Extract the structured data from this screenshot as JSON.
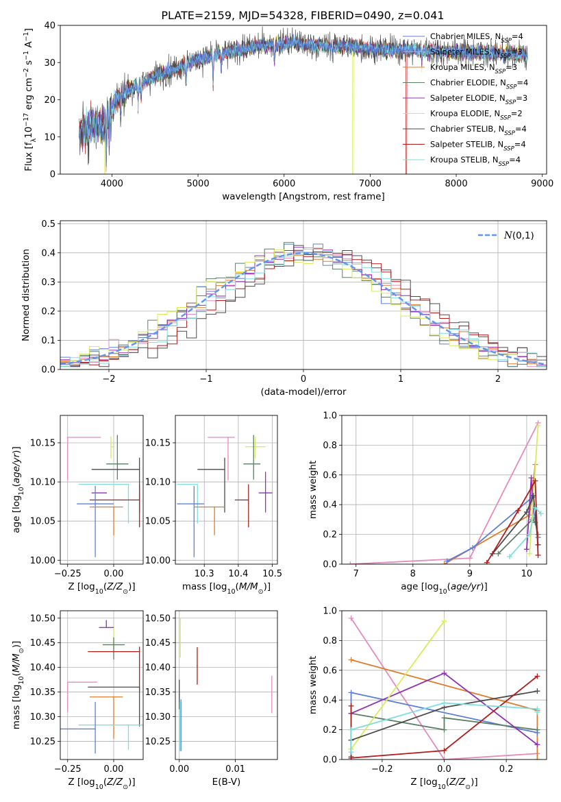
{
  "figure": {
    "title": "PLATE=2159, MJD=54328, FIBERID=0490, z=0.041"
  },
  "colors": {
    "Chabrier MILES": "#5b7fd6",
    "Salpeter MILES": "#e48bbd",
    "Kroupa MILES": "#e07b2a",
    "Chabrier ELODIE": "#5a7f63",
    "Salpeter ELODIE": "#8e2fb4",
    "Kroupa ELODIE": "#d9eb5a",
    "Chabrier STELIB": "#4a4a4a",
    "Salpeter STELIB": "#b01c1c",
    "Kroupa STELIB": "#7fdede"
  },
  "chart_data": [
    {
      "id": "spectrum",
      "type": "line",
      "title": "PLATE=2159, MJD=54328, FIBERID=0490, z=0.041",
      "xlabel": "wavelength [Angstrom, rest frame]",
      "ylabel": "Flux [f_λ 10^-17 erg cm^-2 s^-1 A^-1]",
      "xlim": [
        3400,
        9050
      ],
      "ylim": [
        0,
        40
      ],
      "xticks": [
        4000,
        5000,
        6000,
        7000,
        8000,
        9000
      ],
      "yticks": [
        0,
        10,
        20,
        30,
        40
      ],
      "grid": false,
      "legend_position": "top-right",
      "legend": [
        "Chabrier MILES, N_SSP=4",
        "Salpeter MILES, N_SSP=3",
        "Kroupa MILES, N_SSP=3",
        "Chabrier ELODIE, N_SSP=4",
        "Salpeter ELODIE, N_SSP=3",
        "Kroupa ELODIE, N_SSP=2",
        "Chabrier STELIB, N_SSP=4",
        "Salpeter STELIB, N_SSP=4",
        "Kroupa STELIB, N_SSP=4"
      ],
      "continuum": [
        [
          3620,
          11
        ],
        [
          3700,
          12
        ],
        [
          3800,
          13.5
        ],
        [
          3900,
          13
        ],
        [
          3950,
          16
        ],
        [
          4050,
          20
        ],
        [
          4150,
          22
        ],
        [
          4300,
          24
        ],
        [
          4500,
          26.5
        ],
        [
          4700,
          28
        ],
        [
          4900,
          30
        ],
        [
          5100,
          31.5
        ],
        [
          5300,
          32.5
        ],
        [
          5500,
          33.5
        ],
        [
          5700,
          34.5
        ],
        [
          5900,
          35
        ],
        [
          6100,
          35.3
        ],
        [
          6300,
          35
        ],
        [
          6500,
          34.5
        ],
        [
          6700,
          34.5
        ],
        [
          6900,
          34
        ],
        [
          7100,
          33.5
        ],
        [
          7300,
          33.5
        ],
        [
          7500,
          33.5
        ],
        [
          7700,
          33.2
        ],
        [
          7900,
          33
        ],
        [
          8100,
          33
        ],
        [
          8300,
          32.8
        ],
        [
          8500,
          32.5
        ],
        [
          8700,
          32
        ],
        [
          8830,
          32
        ]
      ],
      "absorption": [
        [
          3934,
          10
        ],
        [
          3969,
          9
        ],
        [
          4101,
          6
        ],
        [
          4305,
          5
        ],
        [
          4340,
          5
        ],
        [
          4861,
          5
        ],
        [
          5175,
          8
        ],
        [
          5270,
          4
        ],
        [
          5890,
          5
        ],
        [
          6563,
          3
        ],
        [
          7600,
          3
        ]
      ],
      "dropouts": [
        {
          "model": "Kroupa ELODIE",
          "wavelength": 6800
        },
        {
          "model": "Salpeter STELIB",
          "wavelength": 7420
        },
        {
          "model": "Kroupa ELODIE",
          "wavelength": 3920
        }
      ]
    },
    {
      "id": "residuals",
      "type": "histogram",
      "xlabel": "(data-model)/error",
      "ylabel": "Normed distribution",
      "xlim": [
        -2.5,
        2.5
      ],
      "ylim": [
        0,
        0.51
      ],
      "xticks": [
        -2,
        -1,
        0,
        1,
        2
      ],
      "yticks": [
        0.0,
        0.1,
        0.2,
        0.3,
        0.4,
        0.5
      ],
      "grid": true,
      "legend_position": "top-right",
      "reference_curve": {
        "label": "N(0,1)",
        "mean": 0,
        "sigma": 1,
        "color": "#6495ed"
      },
      "bin_width": 0.1
    },
    {
      "id": "age_vs_Z",
      "type": "errorbar",
      "xlabel": "Z [log10(Z/Z_sun)]",
      "ylabel": "age [log10(age/yr)]",
      "xlim": [
        -0.29,
        0.16
      ],
      "ylim": [
        9.995,
        10.185
      ],
      "xticks": [
        -0.25,
        0.0
      ],
      "yticks": [
        10.0,
        10.05,
        10.1,
        10.15
      ],
      "grid": true,
      "points": [
        {
          "model": "Salpeter MILES",
          "x": -0.25,
          "y": 10.157,
          "xerr": [
            0,
            0.18
          ],
          "yerr": [
            0.055,
            0
          ]
        },
        {
          "model": "Kroupa ELODIE",
          "x": -0.015,
          "y": 10.145,
          "xerr": [
            0,
            0.02
          ],
          "yerr": [
            0.015,
            0.013
          ]
        },
        {
          "model": "Chabrier ELODIE",
          "x": 0.02,
          "y": 10.123,
          "xerr": [
            0.06,
            0.06
          ],
          "yerr": [
            0.02,
            0.037
          ]
        },
        {
          "model": "Chabrier STELIB",
          "x": 0.14,
          "y": 10.116,
          "xerr": [
            0.26,
            0
          ],
          "yerr": [
            0.055,
            0.015
          ]
        },
        {
          "model": "Salpeter ELODIE",
          "x": -0.04,
          "y": 10.086,
          "xerr": [
            0.08,
            0
          ],
          "yerr": [
            0,
            0
          ]
        },
        {
          "model": "Kroupa STELIB",
          "x": 0.08,
          "y": 10.097,
          "xerr": [
            0.27,
            0
          ],
          "yerr": [
            0.05,
            0
          ]
        },
        {
          "model": "Salpeter STELIB",
          "x": 0.14,
          "y": 10.077,
          "xerr": [
            0.27,
            0
          ],
          "yerr": [
            0.035,
            0.02
          ]
        },
        {
          "model": "Chabrier MILES",
          "x": -0.1,
          "y": 10.072,
          "xerr": [
            0.1,
            0.1
          ],
          "yerr": [
            0.068,
            0.023
          ]
        },
        {
          "model": "Kroupa MILES",
          "x": 0.0,
          "y": 10.068,
          "xerr": [
            0.13,
            0.05
          ],
          "yerr": [
            0.036,
            0
          ]
        }
      ]
    },
    {
      "id": "age_vs_mass",
      "type": "errorbar",
      "xlabel": "mass [log10(M/M_sun)]",
      "ylabel": "",
      "xlim": [
        10.215,
        10.515
      ],
      "ylim": [
        9.995,
        10.185
      ],
      "xticks": [
        10.3,
        10.4,
        10.5
      ],
      "yticks": [
        10.0,
        10.05,
        10.1,
        10.15
      ],
      "grid": true,
      "points": [
        {
          "model": "Salpeter MILES",
          "x": 10.37,
          "y": 10.157,
          "xerr": [
            0.06,
            0.02
          ],
          "yerr": [
            0.055,
            0
          ]
        },
        {
          "model": "Kroupa ELODIE",
          "x": 10.45,
          "y": 10.145,
          "xerr": [
            0.03,
            0.03
          ],
          "yerr": [
            0.015,
            0.013
          ]
        },
        {
          "model": "Chabrier ELODIE",
          "x": 10.445,
          "y": 10.123,
          "xerr": [
            0.03,
            0.02
          ],
          "yerr": [
            0.02,
            0.037
          ]
        },
        {
          "model": "Chabrier STELIB",
          "x": 10.36,
          "y": 10.116,
          "xerr": [
            0.08,
            0
          ],
          "yerr": [
            0.055,
            0.015
          ]
        },
        {
          "model": "Salpeter ELODIE",
          "x": 10.48,
          "y": 10.086,
          "xerr": [
            0.02,
            0.02
          ],
          "yerr": [
            0.025,
            0.027
          ]
        },
        {
          "model": "Kroupa STELIB",
          "x": 10.28,
          "y": 10.097,
          "xerr": [
            0.06,
            0
          ],
          "yerr": [
            0.05,
            0
          ]
        },
        {
          "model": "Salpeter STELIB",
          "x": 10.43,
          "y": 10.077,
          "xerr": [
            0.04,
            0
          ],
          "yerr": [
            0.035,
            0.02
          ]
        },
        {
          "model": "Chabrier MILES",
          "x": 10.27,
          "y": 10.072,
          "xerr": [
            0.05,
            0.03
          ],
          "yerr": [
            0.068,
            0.023
          ]
        },
        {
          "model": "Kroupa MILES",
          "x": 10.33,
          "y": 10.068,
          "xerr": [
            0.06,
            0.03
          ],
          "yerr": [
            0.036,
            0
          ]
        }
      ]
    },
    {
      "id": "weight_vs_age",
      "type": "line",
      "xlabel": "age [log10(age/yr)]",
      "ylabel": "mass weight",
      "xlim": [
        6.75,
        10.35
      ],
      "ylim": [
        0,
        1.0
      ],
      "xticks": [
        7,
        8,
        9,
        10
      ],
      "yticks": [
        0.0,
        0.2,
        0.4,
        0.6,
        0.8,
        1.0
      ],
      "grid": true,
      "series": [
        {
          "model": "Salpeter MILES",
          "x": [
            6.9,
            9.0,
            10.2
          ],
          "y": [
            0.0,
            0.04,
            0.95
          ]
        },
        {
          "model": "Kroupa MILES",
          "x": [
            8.55,
            10.05,
            10.15
          ],
          "y": [
            0.0,
            0.33,
            0.67
          ]
        },
        {
          "model": "Chabrier MILES",
          "x": [
            8.6,
            9.05,
            10.1,
            10.2
          ],
          "y": [
            0.02,
            0.11,
            0.45,
            0.18
          ]
        },
        {
          "model": "Chabrier ELODIE",
          "x": [
            9.5,
            10.1,
            10.15,
            10.2
          ],
          "y": [
            0.07,
            0.3,
            0.28,
            0.2
          ]
        },
        {
          "model": "Salpeter ELODIE",
          "x": [
            10.0,
            10.08,
            10.12
          ],
          "y": [
            0.1,
            0.58,
            0.31
          ]
        },
        {
          "model": "Kroupa ELODIE",
          "x": [
            10.05,
            10.2
          ],
          "y": [
            0.07,
            0.93
          ]
        },
        {
          "model": "Chabrier STELIB",
          "x": [
            9.4,
            10.0,
            10.12,
            10.2
          ],
          "y": [
            0.07,
            0.35,
            0.46,
            0.13
          ]
        },
        {
          "model": "Salpeter STELIB",
          "x": [
            9.3,
            9.85,
            10.15,
            10.2
          ],
          "y": [
            0.01,
            0.36,
            0.56,
            0.06
          ]
        },
        {
          "model": "Kroupa STELIB",
          "x": [
            9.7,
            10.05,
            10.15,
            10.25
          ],
          "y": [
            0.05,
            0.2,
            0.38,
            0.34
          ]
        }
      ]
    },
    {
      "id": "mass_vs_Z",
      "type": "errorbar",
      "xlabel": "Z [log10(Z/Z_sun)]",
      "ylabel": "mass [log10(M/M_sun)]",
      "xlim": [
        -0.29,
        0.16
      ],
      "ylim": [
        10.213,
        10.515
      ],
      "xticks": [
        -0.25,
        0.0
      ],
      "yticks": [
        10.25,
        10.3,
        10.35,
        10.4,
        10.45,
        10.5
      ],
      "grid": true,
      "points": [
        {
          "model": "Salpeter ELODIE",
          "x": -0.04,
          "y": 10.481,
          "xerr": [
            0.04,
            0.04
          ],
          "yerr": [
            0,
            0.015
          ]
        },
        {
          "model": "Kroupa ELODIE",
          "x": 0.0,
          "y": 10.455,
          "xerr": [
            0,
            0
          ],
          "yerr": [
            0.025,
            0.025
          ]
        },
        {
          "model": "Chabrier ELODIE",
          "x": 0.0,
          "y": 10.446,
          "xerr": [
            0.06,
            0.06
          ],
          "yerr": [
            0.03,
            0.015
          ]
        },
        {
          "model": "Salpeter STELIB",
          "x": 0.14,
          "y": 10.432,
          "xerr": [
            0.28,
            0
          ],
          "yerr": [
            0.08,
            0.01
          ]
        },
        {
          "model": "Salpeter MILES",
          "x": -0.25,
          "y": 10.37,
          "xerr": [
            0,
            0.16
          ],
          "yerr": [
            0.06,
            0
          ]
        },
        {
          "model": "Chabrier STELIB",
          "x": 0.14,
          "y": 10.36,
          "xerr": [
            0.28,
            0
          ],
          "yerr": [
            0.08,
            0
          ]
        },
        {
          "model": "Kroupa MILES",
          "x": 0.0,
          "y": 10.34,
          "xerr": [
            0.13,
            0.05
          ],
          "yerr": [
            0.085,
            0
          ]
        },
        {
          "model": "Kroupa STELIB",
          "x": 0.08,
          "y": 10.283,
          "xerr": [
            0.27,
            0.08
          ],
          "yerr": [
            0.05,
            0
          ]
        },
        {
          "model": "Chabrier MILES",
          "x": -0.1,
          "y": 10.275,
          "xerr": [
            0.2,
            0
          ],
          "yerr": [
            0.05,
            0.055
          ]
        }
      ]
    },
    {
      "id": "mass_vs_EBV",
      "type": "errorbar",
      "xlabel": "E(B-V)",
      "ylabel": "",
      "xlim": [
        -0.0007,
        0.0175
      ],
      "ylim": [
        10.213,
        10.515
      ],
      "xticks": [
        0.0,
        0.01
      ],
      "yticks": [
        10.25,
        10.3,
        10.35,
        10.4,
        10.45,
        10.5
      ],
      "grid": true,
      "points": [
        {
          "model": "Kroupa ELODIE",
          "x": 0.0002,
          "y": 10.46,
          "xerr": [
            0,
            0
          ],
          "yerr": [
            0.04,
            0.04
          ]
        },
        {
          "model": "Salpeter STELIB",
          "x": 0.0032,
          "y": 10.403,
          "xerr": [
            0,
            0
          ],
          "yerr": [
            0.038,
            0.038
          ]
        },
        {
          "model": "Salpeter MILES",
          "x": 0.0165,
          "y": 10.345,
          "xerr": [
            0,
            0
          ],
          "yerr": [
            0.038,
            0.038
          ]
        },
        {
          "model": "Chabrier STELIB",
          "x": 0.0,
          "y": 10.345,
          "xerr": [
            0,
            0
          ],
          "yerr": [
            0.03,
            0.03
          ]
        },
        {
          "model": "Kroupa STELIB",
          "x": 0.0001,
          "y": 10.28,
          "xerr": [
            0,
            0
          ],
          "yerr": [
            0.05,
            0.05
          ]
        },
        {
          "model": "Chabrier MILES",
          "x": 0.0003,
          "y": 10.3,
          "xerr": [
            0,
            0
          ],
          "yerr": [
            0.07,
            0.035
          ]
        }
      ]
    },
    {
      "id": "weight_vs_Z",
      "type": "line",
      "xlabel": "Z [log10(Z/Z_sun)]",
      "ylabel": "mass weight",
      "xlim": [
        -0.33,
        0.33
      ],
      "ylim": [
        0,
        1.0
      ],
      "xticks": [
        -0.2,
        0.0,
        0.2
      ],
      "yticks": [
        0.0,
        0.2,
        0.4,
        0.6,
        0.8,
        1.0
      ],
      "grid": true,
      "series": [
        {
          "model": "Salpeter MILES",
          "x": [
            -0.3,
            0.0,
            0.3
          ],
          "y": [
            0.95,
            0.0,
            0.04
          ]
        },
        {
          "model": "Kroupa MILES",
          "x": [
            -0.3,
            0.3,
            0.3
          ],
          "y": [
            0.67,
            0.33,
            0.0
          ]
        },
        {
          "model": "Chabrier MILES",
          "x": [
            -0.3,
            -0.3,
            0.3
          ],
          "y": [
            0.02,
            0.45,
            0.18
          ]
        },
        {
          "model": "Chabrier ELODIE",
          "x": [
            -0.3,
            0.0,
            0.0,
            0.3
          ],
          "y": [
            0.31,
            0.2,
            0.28,
            0.2
          ]
        },
        {
          "model": "Salpeter ELODIE",
          "x": [
            -0.3,
            0.0,
            0.3
          ],
          "y": [
            0.31,
            0.58,
            0.1
          ]
        },
        {
          "model": "Kroupa ELODIE",
          "x": [
            -0.3,
            0.0
          ],
          "y": [
            0.07,
            0.93
          ]
        },
        {
          "model": "Chabrier STELIB",
          "x": [
            -0.3,
            0.0,
            0.3
          ],
          "y": [
            0.13,
            0.35,
            0.46
          ]
        },
        {
          "model": "Salpeter STELIB",
          "x": [
            -0.3,
            -0.3,
            0.0,
            0.3
          ],
          "y": [
            0.36,
            0.01,
            0.06,
            0.56
          ]
        },
        {
          "model": "Kroupa STELIB",
          "x": [
            -0.3,
            -0.3,
            0.0,
            0.3,
            0.3
          ],
          "y": [
            0.05,
            0.2,
            0.38,
            0.34,
            0.32
          ]
        }
      ]
    }
  ]
}
